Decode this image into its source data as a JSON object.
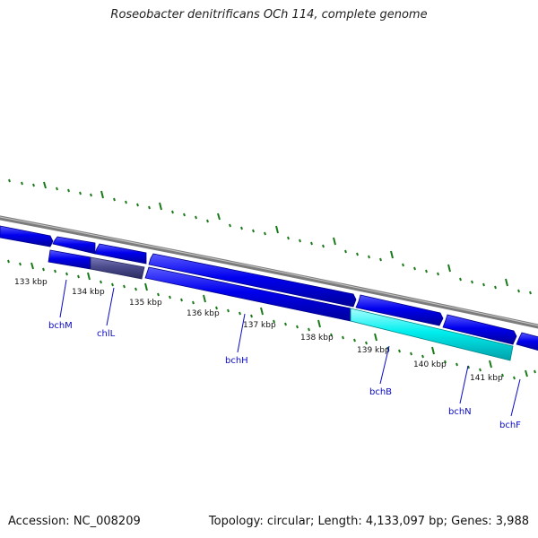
{
  "title": "Roseobacter denitrificans OCh 114, complete genome",
  "footer": {
    "accession": "Accession: NC_008209",
    "stats": "Topology: circular; Length: 4,133,097 bp; Genes: 3,988"
  },
  "colors": {
    "backbone": "#888888",
    "gene_blue": "#0000ee",
    "gene_highlight": "#00e5ee",
    "gene_dark": "#4b4b8c",
    "tick_green": "#1a7a1a",
    "label_blue": "#0a0ac8"
  },
  "ticks": {
    "labels": [
      "133 kbp",
      "134 kbp",
      "135 kbp",
      "136 kbp",
      "137 kbp",
      "138 kbp",
      "139 kbp",
      "140 kbp",
      "141 kbp"
    ]
  },
  "genes": {
    "labels": [
      "bchM",
      "chlL",
      "bchH",
      "bchB",
      "bchN",
      "bchF"
    ]
  }
}
